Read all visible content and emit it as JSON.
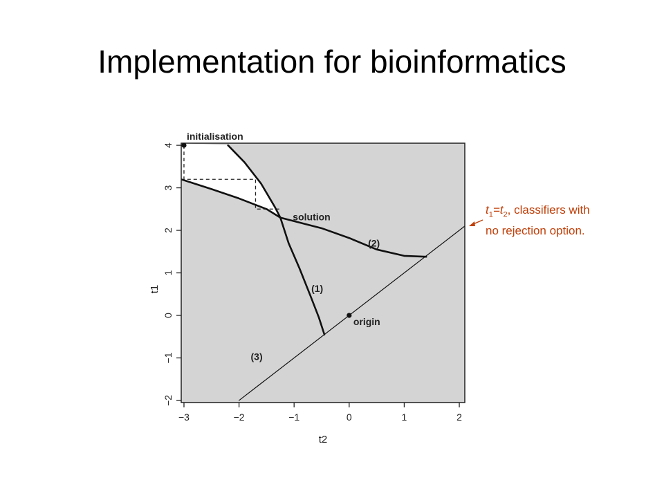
{
  "slide": {
    "title": "Implementation for bioinformatics"
  },
  "annotation": {
    "part1": "t",
    "sub1": "1",
    "part2": "=t",
    "sub2": "2",
    "part3": ", classifiers with",
    "line2": "no rejection option.",
    "color": "#c0400a"
  },
  "chart_data": {
    "type": "line",
    "title": "",
    "xlabel": "t2",
    "ylabel": "t1",
    "xlim": [
      -3.05,
      2.1
    ],
    "ylim": [
      -2.05,
      4.05
    ],
    "xticks": [
      -3,
      -2,
      -1,
      0,
      1,
      2
    ],
    "yticks": [
      -2,
      -1,
      0,
      1,
      2,
      3,
      4
    ],
    "x_tick_labels": [
      "−3",
      "−2",
      "−1",
      "0",
      "1",
      "2"
    ],
    "y_tick_labels": [
      "−2",
      "−1",
      "0",
      "1",
      "2",
      "3",
      "4"
    ],
    "background_color": "#d4d4d4",
    "feasible_region_color": "#ffffff",
    "series": [
      {
        "name": "(1)",
        "style": "thick",
        "x": [
          -2.2,
          -1.9,
          -1.6,
          -1.35,
          -1.25,
          -1.1,
          -0.9,
          -0.7,
          -0.55,
          -0.45
        ],
        "y": [
          4.0,
          3.6,
          3.1,
          2.55,
          2.3,
          1.7,
          1.1,
          0.45,
          -0.05,
          -0.45
        ]
      },
      {
        "name": "(2)",
        "style": "thick",
        "x": [
          -3.05,
          -2.5,
          -2.0,
          -1.5,
          -1.25,
          -0.5,
          0.0,
          0.5,
          1.0,
          1.4
        ],
        "y": [
          3.2,
          2.97,
          2.75,
          2.5,
          2.3,
          2.05,
          1.82,
          1.55,
          1.4,
          1.38
        ]
      },
      {
        "name": "(3)",
        "style": "thin",
        "x": [
          -2.0,
          2.1
        ],
        "y": [
          -2.0,
          2.1
        ]
      }
    ],
    "initialisation_path": {
      "x": [
        -3.0,
        -3.0,
        -1.7,
        -1.7,
        -1.25
      ],
      "y": [
        4.0,
        3.2,
        3.2,
        2.5,
        2.5
      ]
    },
    "points": [
      {
        "label": "initialisation",
        "x": -3.0,
        "y": 4.0
      },
      {
        "label": "solution",
        "x": -1.25,
        "y": 2.3
      },
      {
        "label": "origin",
        "x": 0.0,
        "y": 0.0
      }
    ],
    "grid": false,
    "legend": "none"
  }
}
